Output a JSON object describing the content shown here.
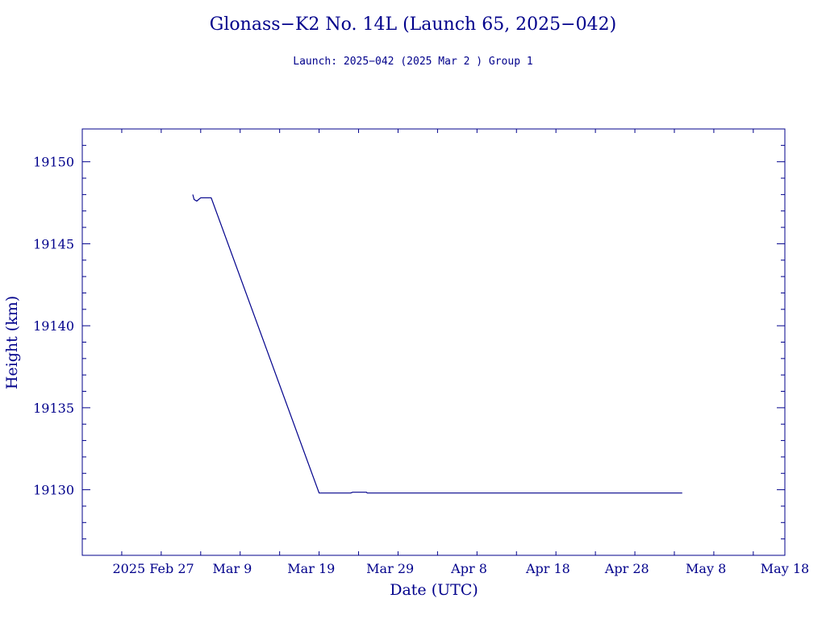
{
  "chart_data": {
    "type": "line",
    "title": "Glonass−K2 No. 14L (Launch 65, 2025−042)",
    "subtitle": "Launch: 2025−042  (2025 Mar  2 )  Group 1",
    "xlabel": "Date (UTC)",
    "ylabel": "Height (km)",
    "x_tick_labels": [
      "2025 Feb 27",
      "Mar  9",
      "Mar 19",
      "Mar 29",
      "Apr  8",
      "Apr 18",
      "Apr 28",
      "May  8",
      "May 18"
    ],
    "x_ticks": [
      "2025-02-27",
      "2025-03-09",
      "2025-03-19",
      "2025-03-29",
      "2025-04-08",
      "2025-04-18",
      "2025-04-28",
      "2025-05-08",
      "2025-05-18"
    ],
    "y_ticks": [
      19130,
      19135,
      19140,
      19145,
      19150
    ],
    "xlim": [
      "2025-02-18",
      "2025-05-18"
    ],
    "ylim": [
      19126,
      19152
    ],
    "grid": false,
    "line_color": "#00008b",
    "series": [
      {
        "x": [
          "2025-03-04",
          "2025-03-04 04:00",
          "2025-03-04 12:00",
          "2025-03-05",
          "2025-03-06",
          "2025-03-06 08:00",
          "2025-03-20",
          "2025-03-24",
          "2025-03-24 06:00",
          "2025-03-26",
          "2025-03-26 02:00",
          "2025-05-05"
        ],
        "y": [
          19148.0,
          19147.7,
          19147.6,
          19147.8,
          19147.8,
          19147.8,
          19129.8,
          19129.8,
          19129.85,
          19129.85,
          19129.8,
          19129.8
        ]
      }
    ]
  }
}
